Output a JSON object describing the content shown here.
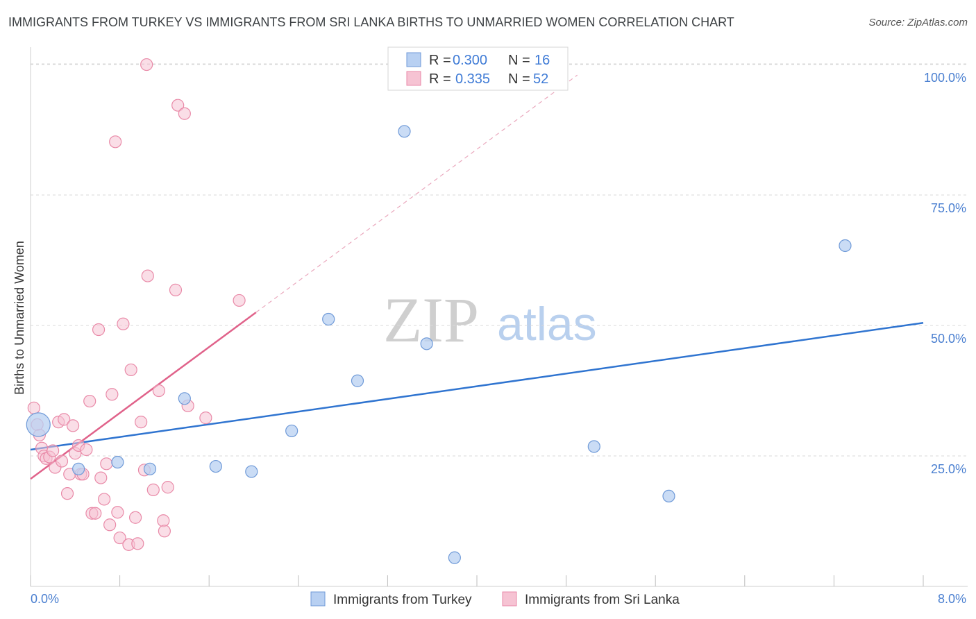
{
  "header": {
    "title": "IMMIGRANTS FROM TURKEY VS IMMIGRANTS FROM SRI LANKA BIRTHS TO UNMARRIED WOMEN CORRELATION CHART",
    "source": "Source: ZipAtlas.com"
  },
  "watermark": {
    "zip": "ZIP",
    "atlas": "atlas"
  },
  "legend": {
    "turkey": {
      "r_label": "R =",
      "r_value": "0.300",
      "n_label": "N =",
      "n_value": "16"
    },
    "srilanka": {
      "r_label": "R =",
      "r_value": "0.335",
      "n_label": "N =",
      "n_value": "52"
    }
  },
  "bottom_legend": {
    "turkey": "Immigrants from Turkey",
    "srilanka": "Immigrants from Sri Lanka"
  },
  "colors": {
    "turkey_fill": "#b8d0f2",
    "turkey_stroke": "#6f9ad8",
    "turkey_line": "#2f74d0",
    "srilanka_fill": "#f6c3d3",
    "srilanka_stroke": "#e98aa8",
    "srilanka_line": "#e0628a",
    "grid": "#d9d9d9",
    "tick_text": "#4a7fd0"
  },
  "chart_data": {
    "type": "scatter",
    "title": "IMMIGRANTS FROM TURKEY VS IMMIGRANTS FROM SRI LANKA BIRTHS TO UNMARRIED WOMEN CORRELATION CHART",
    "xlabel": "",
    "ylabel": "Births to Unmarried Women",
    "xlim": [
      0,
      8
    ],
    "ylim": [
      0,
      102
    ],
    "x_tick_labels": {
      "left": "0.0%",
      "right": "8.0%"
    },
    "y_ticks": [
      {
        "value": 25,
        "label": "25.0%"
      },
      {
        "value": 50,
        "label": "50.0%"
      },
      {
        "value": 75,
        "label": "75.0%"
      },
      {
        "value": 100,
        "label": "100.0%"
      }
    ],
    "series": [
      {
        "name": "Immigrants from Turkey",
        "key": "turkey",
        "R": 0.3,
        "N": 16,
        "trend": {
          "x0": 0,
          "y0": 26.2,
          "x1": 8,
          "y1": 50.5,
          "dashed_extension": false
        },
        "points": [
          {
            "x": 0.07,
            "y": 31.0,
            "big": true
          },
          {
            "x": 0.43,
            "y": 22.5
          },
          {
            "x": 0.78,
            "y": 23.8
          },
          {
            "x": 1.07,
            "y": 22.5
          },
          {
            "x": 1.38,
            "y": 36.0
          },
          {
            "x": 1.66,
            "y": 23.0
          },
          {
            "x": 1.98,
            "y": 22.0
          },
          {
            "x": 2.34,
            "y": 29.8
          },
          {
            "x": 2.67,
            "y": 51.2
          },
          {
            "x": 2.93,
            "y": 39.4
          },
          {
            "x": 3.35,
            "y": 87.2
          },
          {
            "x": 3.55,
            "y": 46.5
          },
          {
            "x": 3.8,
            "y": 5.5
          },
          {
            "x": 5.05,
            "y": 26.8
          },
          {
            "x": 5.72,
            "y": 17.3
          },
          {
            "x": 7.3,
            "y": 65.3
          }
        ]
      },
      {
        "name": "Immigrants from Sri Lanka",
        "key": "srilanka",
        "R": 0.335,
        "N": 52,
        "trend": {
          "x0": 0,
          "y0": 20.6,
          "x1": 2.02,
          "y1": 52.5,
          "dashed_to_x": 4.9
        },
        "points": [
          {
            "x": 0.03,
            "y": 34.2
          },
          {
            "x": 0.06,
            "y": 31.0
          },
          {
            "x": 0.08,
            "y": 29.0
          },
          {
            "x": 0.1,
            "y": 26.5
          },
          {
            "x": 0.12,
            "y": 25.0
          },
          {
            "x": 0.14,
            "y": 24.5
          },
          {
            "x": 0.17,
            "y": 24.8
          },
          {
            "x": 0.2,
            "y": 26.0
          },
          {
            "x": 0.22,
            "y": 22.8
          },
          {
            "x": 0.25,
            "y": 31.5
          },
          {
            "x": 0.28,
            "y": 24.0
          },
          {
            "x": 0.3,
            "y": 32.0
          },
          {
            "x": 0.33,
            "y": 17.8
          },
          {
            "x": 0.35,
            "y": 21.5
          },
          {
            "x": 0.38,
            "y": 30.8
          },
          {
            "x": 0.4,
            "y": 25.5
          },
          {
            "x": 0.43,
            "y": 27.0
          },
          {
            "x": 0.45,
            "y": 21.5
          },
          {
            "x": 0.47,
            "y": 21.5
          },
          {
            "x": 0.5,
            "y": 26.2
          },
          {
            "x": 0.53,
            "y": 35.5
          },
          {
            "x": 0.55,
            "y": 14.0
          },
          {
            "x": 0.58,
            "y": 14.0
          },
          {
            "x": 0.61,
            "y": 49.2
          },
          {
            "x": 0.63,
            "y": 20.8
          },
          {
            "x": 0.66,
            "y": 16.7
          },
          {
            "x": 0.68,
            "y": 23.5
          },
          {
            "x": 0.71,
            "y": 11.8
          },
          {
            "x": 0.73,
            "y": 36.8
          },
          {
            "x": 0.76,
            "y": 85.2
          },
          {
            "x": 0.78,
            "y": 14.2
          },
          {
            "x": 0.8,
            "y": 9.3
          },
          {
            "x": 0.83,
            "y": 50.3
          },
          {
            "x": 0.88,
            "y": 8.0
          },
          {
            "x": 0.9,
            "y": 41.5
          },
          {
            "x": 0.94,
            "y": 13.2
          },
          {
            "x": 0.96,
            "y": 8.2
          },
          {
            "x": 0.99,
            "y": 31.5
          },
          {
            "x": 1.02,
            "y": 22.3
          },
          {
            "x": 1.04,
            "y": 100.0
          },
          {
            "x": 1.05,
            "y": 59.5
          },
          {
            "x": 1.1,
            "y": 18.5
          },
          {
            "x": 1.15,
            "y": 37.5
          },
          {
            "x": 1.19,
            "y": 12.6
          },
          {
            "x": 1.2,
            "y": 10.6
          },
          {
            "x": 1.23,
            "y": 19.0
          },
          {
            "x": 1.3,
            "y": 56.8
          },
          {
            "x": 1.32,
            "y": 92.2
          },
          {
            "x": 1.38,
            "y": 90.6
          },
          {
            "x": 1.41,
            "y": 34.6
          },
          {
            "x": 1.57,
            "y": 32.3
          },
          {
            "x": 1.87,
            "y": 54.8
          }
        ]
      }
    ]
  }
}
